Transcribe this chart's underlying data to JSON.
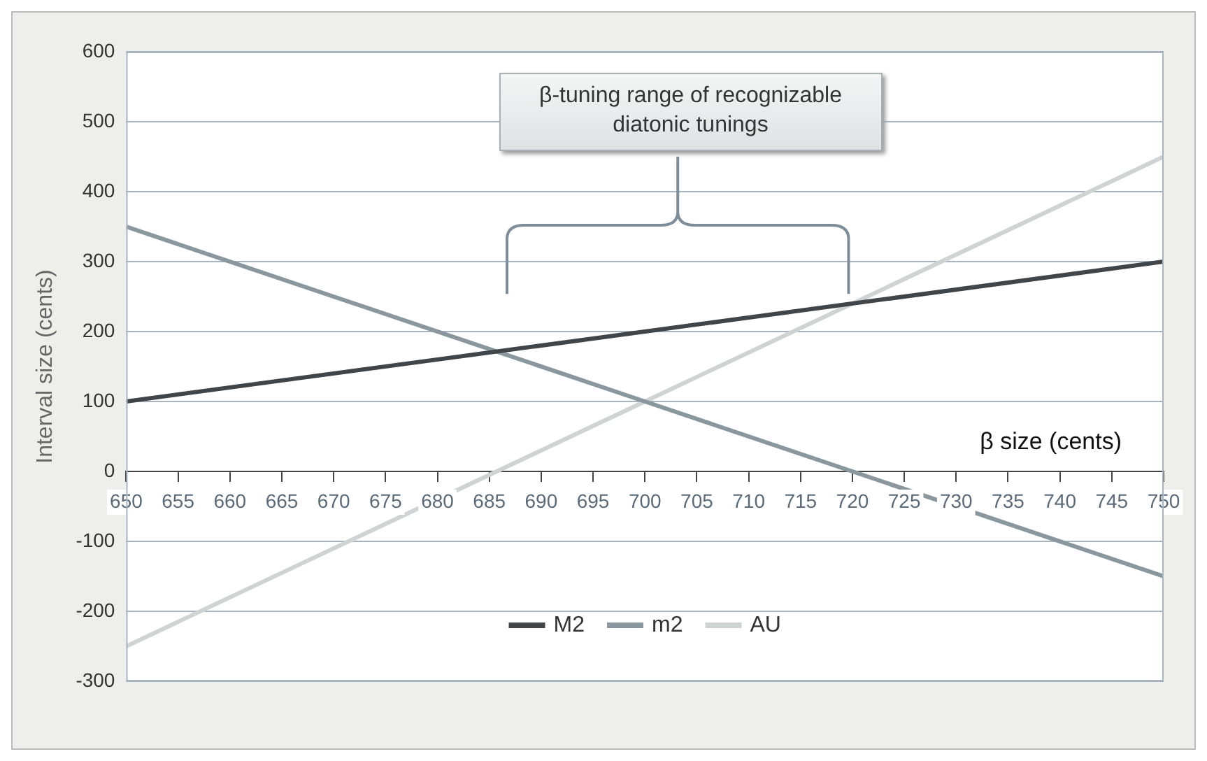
{
  "chart_data": {
    "type": "line",
    "xlabel": "β size (cents)",
    "ylabel": "Interval size (cents)",
    "annotations": [
      "β-tuning range of recognizable diatonic tunings"
    ],
    "x": [
      650,
      700,
      750
    ],
    "series": [
      {
        "name": "M2",
        "color": "#3f4549",
        "values": [
          100,
          200,
          300
        ]
      },
      {
        "name": "m2",
        "color": "#8a979f",
        "values": [
          350,
          100,
          -150
        ]
      },
      {
        "name": "AU",
        "color": "#cfd3d4",
        "values": [
          -250,
          100,
          450
        ]
      }
    ],
    "xlim": [
      650,
      750
    ],
    "xticks": [
      650,
      655,
      660,
      665,
      670,
      675,
      680,
      685,
      690,
      695,
      700,
      705,
      710,
      715,
      720,
      725,
      730,
      735,
      740,
      745,
      750
    ],
    "ylim": [
      -300,
      600
    ],
    "yticks": [
      -300,
      -200,
      -100,
      0,
      100,
      200,
      300,
      400,
      500,
      600
    ],
    "grid": "y",
    "legend": "bottom",
    "marker": "none",
    "line_style": "solid"
  }
}
